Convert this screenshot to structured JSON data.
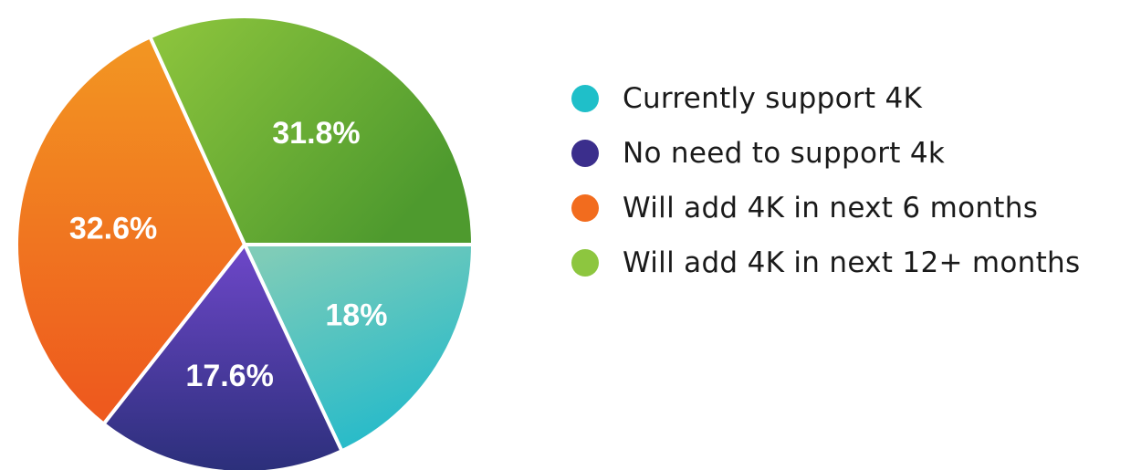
{
  "chart_data": {
    "type": "pie",
    "slices": [
      {
        "label": "Currently support 4K",
        "value": 18,
        "display": "18%",
        "color": "#1FBFC9",
        "gradient": [
          "#7FCCB8",
          "#1AB8CC"
        ]
      },
      {
        "label": "No need to support 4k",
        "value": 17.6,
        "display": "17.6%",
        "color": "#3B2E8C",
        "gradient": [
          "#6E47C9",
          "#2B2F7A"
        ]
      },
      {
        "label": "Will add 4K in next 6 months",
        "value": 32.6,
        "display": "32.6%",
        "color": "#F26C1E",
        "gradient": [
          "#F39A22",
          "#EE5A1E"
        ]
      },
      {
        "label": "Will add 4K in next 12+ months",
        "value": 31.8,
        "display": "31.8%",
        "color": "#8DC63F",
        "gradient": [
          "#92C83E",
          "#4E9A2E"
        ]
      }
    ],
    "legend_position": "right"
  }
}
